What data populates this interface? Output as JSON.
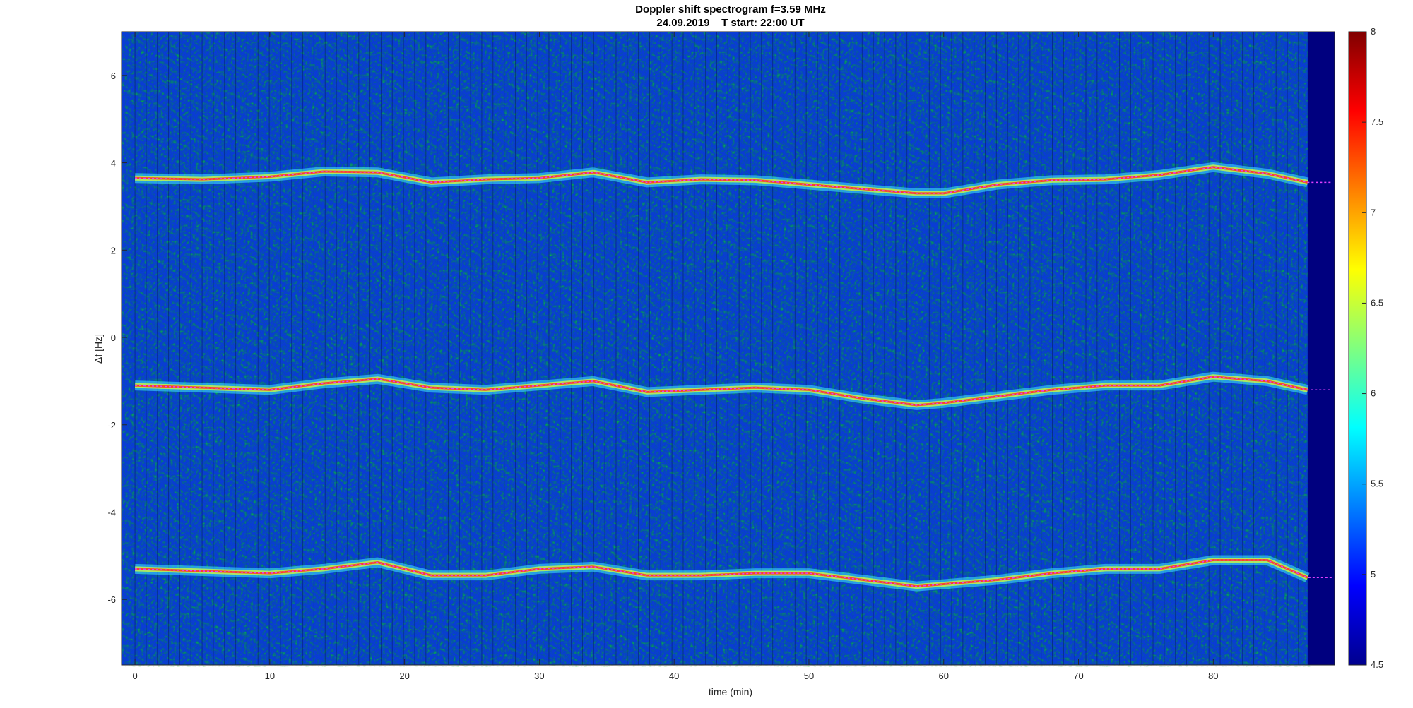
{
  "chart_data": {
    "type": "heatmap",
    "title": "Doppler shift spectrogram f=3.59 MHz",
    "subtitle": "24.09.2019    T start: 22:00 UT",
    "xlabel": "time (min)",
    "ylabel": "Δf [Hz]",
    "xlim": [
      -1,
      89
    ],
    "ylim": [
      -7.5,
      7
    ],
    "xticks": [
      "0",
      "10",
      "20",
      "30",
      "40",
      "50",
      "60",
      "70",
      "80"
    ],
    "yticks": [
      "6",
      "4",
      "2",
      "0",
      "-2",
      "-4",
      "-6"
    ],
    "colormap": "jet",
    "colorbar": {
      "range": [
        4.5,
        8
      ],
      "ticks": [
        "8",
        "7.5",
        "7",
        "6.5",
        "6",
        "5.5",
        "5",
        "4.5"
      ]
    },
    "data_end_min": 87,
    "traces": [
      {
        "x": [
          0,
          5,
          10,
          14,
          18,
          22,
          26,
          30,
          34,
          38,
          42,
          46,
          50,
          54,
          58,
          60,
          64,
          68,
          72,
          76,
          80,
          84,
          87
        ],
        "y": [
          3.65,
          3.62,
          3.68,
          3.8,
          3.78,
          3.55,
          3.62,
          3.65,
          3.78,
          3.55,
          3.62,
          3.6,
          3.5,
          3.4,
          3.3,
          3.3,
          3.5,
          3.6,
          3.62,
          3.72,
          3.9,
          3.75,
          3.55
        ]
      },
      {
        "x": [
          0,
          5,
          10,
          14,
          18,
          22,
          26,
          30,
          34,
          38,
          42,
          46,
          50,
          54,
          58,
          60,
          64,
          68,
          72,
          76,
          80,
          84,
          87
        ],
        "y": [
          -1.1,
          -1.15,
          -1.2,
          -1.05,
          -0.95,
          -1.15,
          -1.2,
          -1.1,
          -1.0,
          -1.25,
          -1.2,
          -1.15,
          -1.2,
          -1.4,
          -1.55,
          -1.5,
          -1.35,
          -1.2,
          -1.1,
          -1.1,
          -0.9,
          -1.0,
          -1.2
        ]
      },
      {
        "x": [
          0,
          5,
          10,
          14,
          18,
          22,
          26,
          30,
          34,
          38,
          42,
          46,
          50,
          54,
          58,
          60,
          64,
          68,
          72,
          76,
          80,
          84,
          87
        ],
        "y": [
          -5.3,
          -5.35,
          -5.4,
          -5.3,
          -5.15,
          -5.45,
          -5.45,
          -5.3,
          -5.25,
          -5.45,
          -5.45,
          -5.4,
          -5.4,
          -5.55,
          -5.7,
          -5.65,
          -5.55,
          -5.4,
          -5.3,
          -5.3,
          -5.1,
          -5.1,
          -5.5
        ]
      }
    ]
  }
}
